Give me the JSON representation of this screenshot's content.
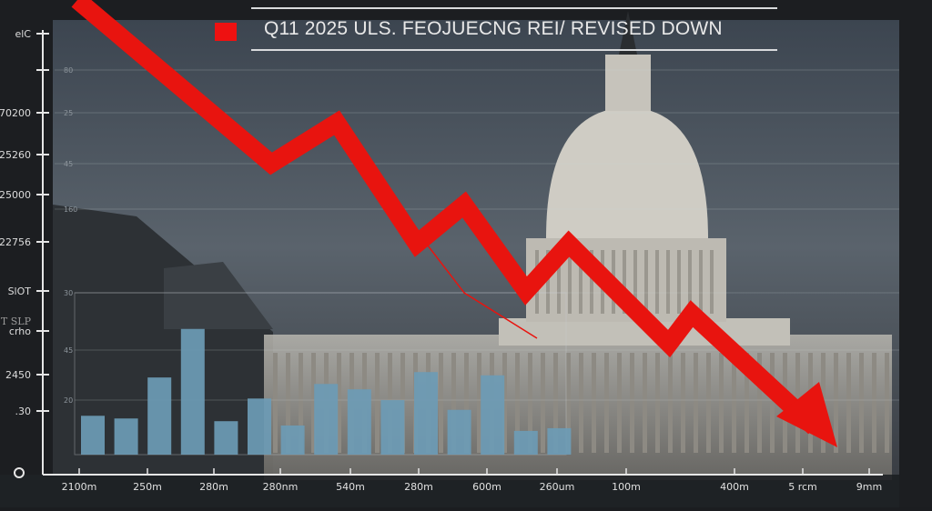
{
  "chart_data": {
    "type": "bar",
    "title": "Q11 2025 ULS. FEOJUECNG REI/ REVISED DOWN",
    "left_axis_labels": [
      "elC",
      "",
      "70200",
      "25260",
      "25000",
      "22756",
      "SlOT",
      "crho",
      "2450",
      ".30",
      "O"
    ],
    "left_axis_sublabel": "T SLP",
    "inner_axis_labels": [
      "80",
      "25",
      "45",
      "160",
      "30",
      "45",
      "20"
    ],
    "x_tick_labels": [
      "2100m",
      "250m",
      "280m",
      "280nm",
      "540m",
      "280m",
      "600m",
      "260um",
      "100m",
      "400m",
      "5 rcm",
      "9mm"
    ],
    "bars": {
      "values": [
        7.2,
        6.7,
        14.3,
        23.3,
        6.2,
        10.4,
        5.4,
        13.1,
        12.1,
        10.1,
        15.3,
        8.3,
        14.7,
        4.4,
        4.9
      ],
      "ylim": [
        0,
        30
      ],
      "color": "#6d9bb5"
    },
    "trend": {
      "values": [
        100,
        64,
        73,
        46.4,
        55,
        36,
        46.4,
        24.4,
        31,
        6
      ],
      "ylim": [
        0,
        100
      ],
      "color": "#e8140f",
      "direction": "down"
    },
    "grid": true,
    "legend_swatch_color": "#ee1111"
  }
}
